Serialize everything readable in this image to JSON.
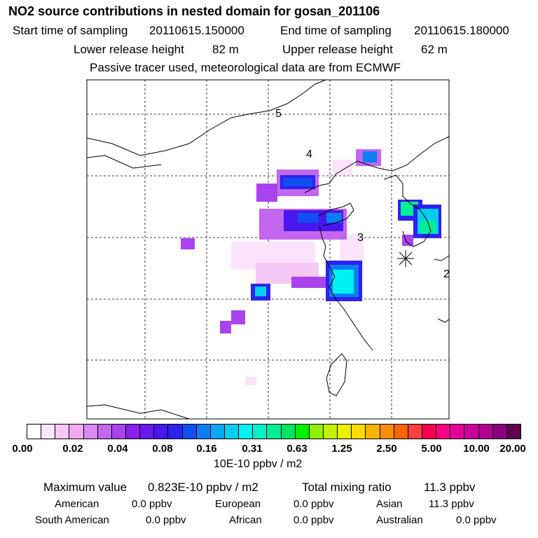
{
  "header": {
    "title": "NO2 source contributions in nested domain for gosan_201106",
    "start_label": "Start time of sampling",
    "start_value": "20110615.150000",
    "end_label": "End time of sampling",
    "end_value": "20110615.180000",
    "lower_label": "Lower release height",
    "lower_value": "82 m",
    "upper_label": "Upper release height",
    "upper_value": "62 m",
    "note": "Passive tracer used, meteorological data are from ECMWF"
  },
  "map": {
    "markers": [
      "5",
      "4",
      "3",
      "2"
    ],
    "receptor_icon": "asterisk-receptor-icon"
  },
  "legend": {
    "colors": [
      "#ffffff",
      "#fbe4fb",
      "#f6c8f6",
      "#f1a9f3",
      "#d88af0",
      "#c267ee",
      "#a944ed",
      "#8b1fed",
      "#6a18ee",
      "#4a16ee",
      "#2d22ef",
      "#1050f0",
      "#0a7ff1",
      "#06a8f2",
      "#04cdf0",
      "#00f2f0",
      "#00f0c8",
      "#00ee96",
      "#00e464",
      "#00ee00",
      "#8ef000",
      "#c4f000",
      "#eaf000",
      "#f9dd00",
      "#f9b300",
      "#f98c00",
      "#f96700",
      "#f94140",
      "#f9004f",
      "#f90084",
      "#e6009a",
      "#c8009d",
      "#b0008e",
      "#8a007e",
      "#5e004f"
    ],
    "ticks": [
      "0.00",
      "0.02",
      "0.04",
      "0.08",
      "0.16",
      "0.31",
      "0.63",
      "1.25",
      "2.50",
      "5.00",
      "10.00",
      "20.00"
    ],
    "units": "10E-10 ppbv / m2"
  },
  "stats": {
    "max_label": "Maximum value",
    "max_value": "0.823E-10 ppbv / m2",
    "total_label": "Total mixing ratio",
    "total_value": "11.3 ppbv",
    "regions": [
      {
        "name": "American",
        "value": "0.0 ppbv"
      },
      {
        "name": "European",
        "value": "0.0 ppbv"
      },
      {
        "name": "Asian",
        "value": "11.3 ppbv"
      },
      {
        "name": "South American",
        "value": "0.0 ppbv"
      },
      {
        "name": "African",
        "value": "0.0 ppbv"
      },
      {
        "name": "Australian",
        "value": "0.0 ppbv"
      }
    ]
  }
}
